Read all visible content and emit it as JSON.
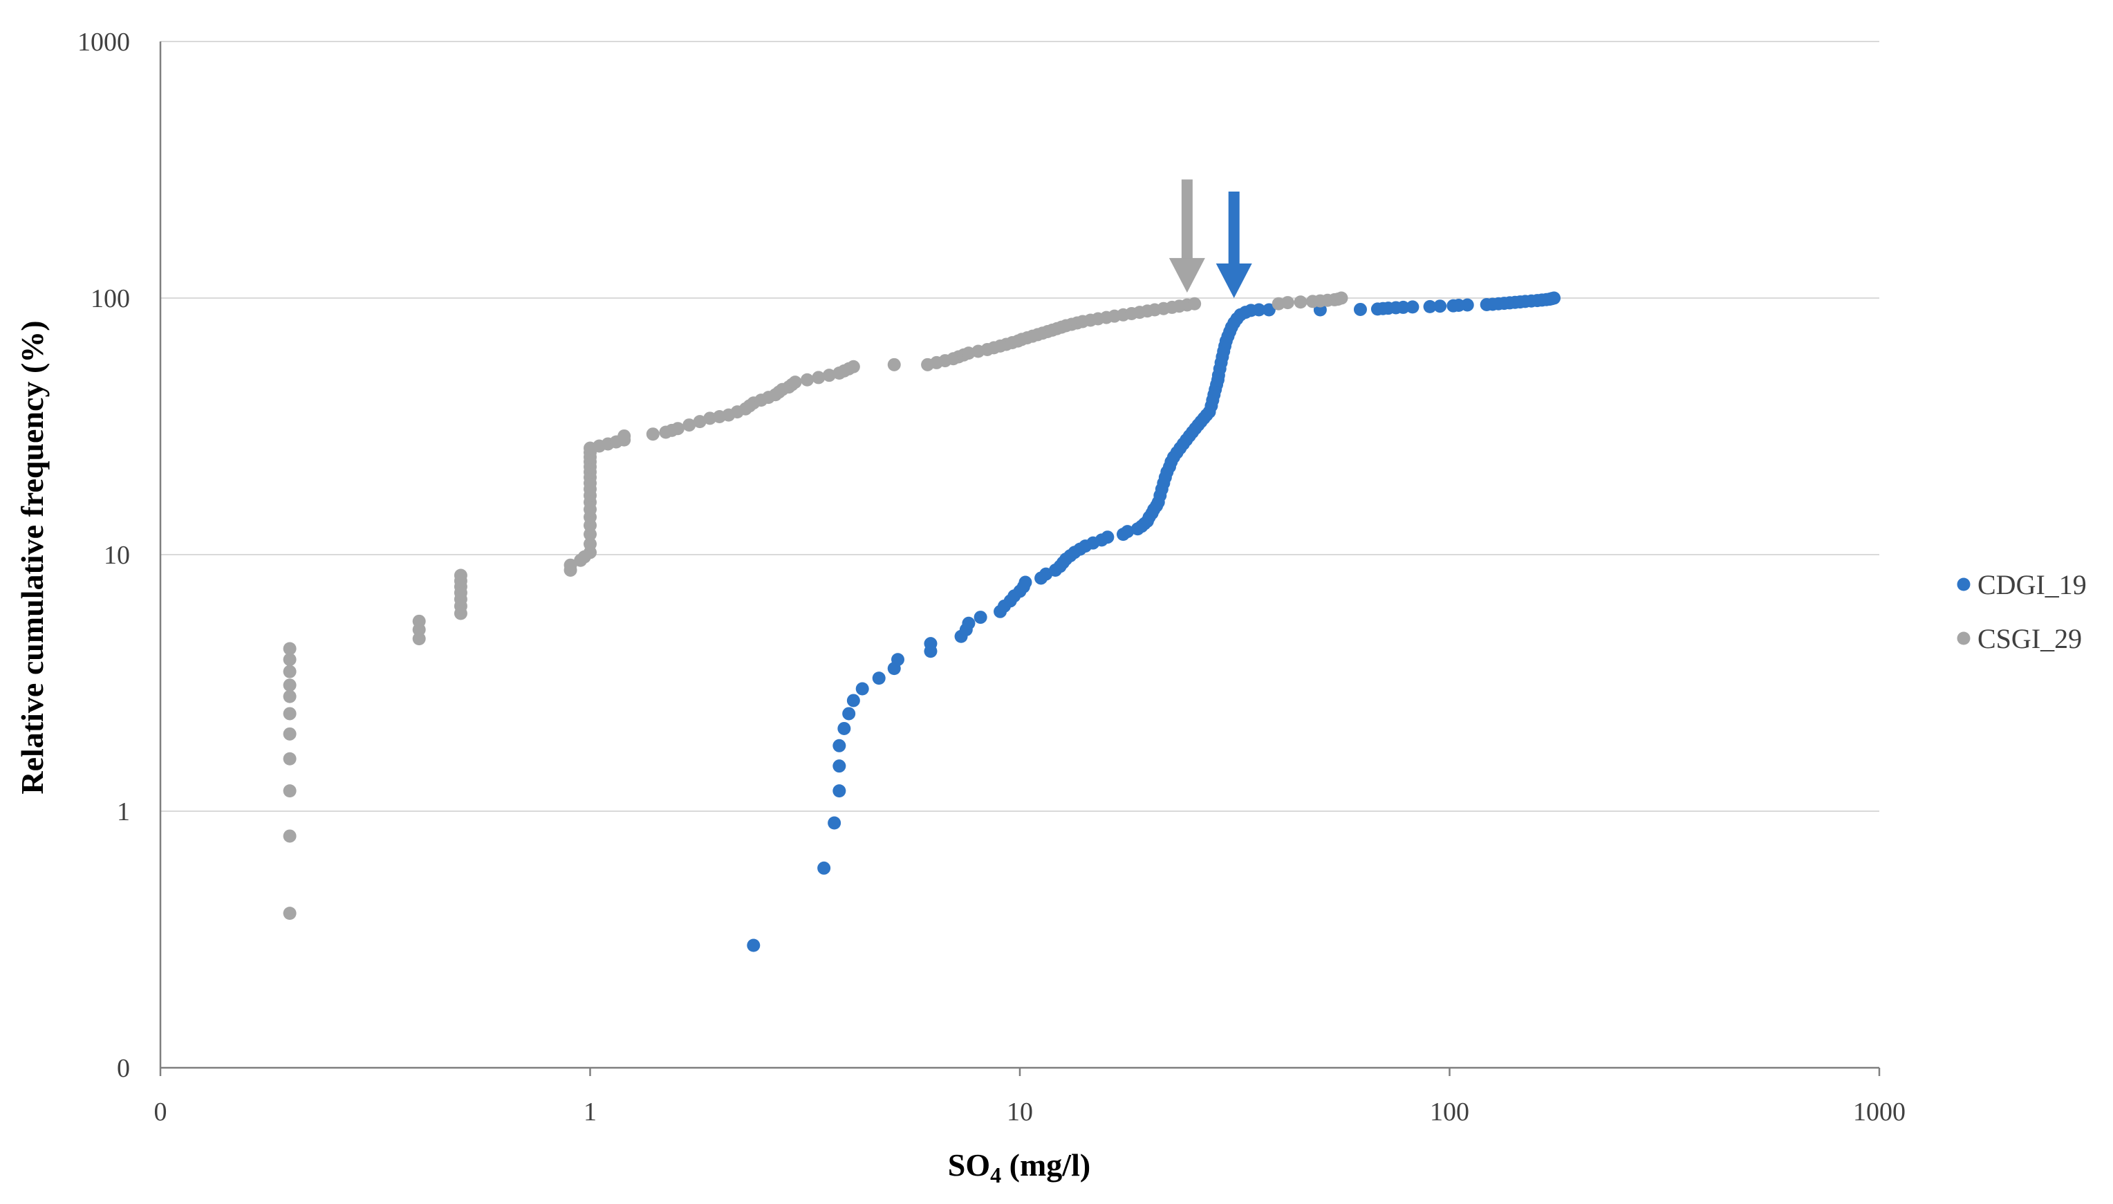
{
  "chart_data": {
    "type": "scatter",
    "title": "",
    "xlabel": "SO",
    "xlabel_subscript": "4",
    "xlabel_suffix": " (mg/l)",
    "ylabel": "Relative cumulative frequency (%)",
    "x_scale": "log",
    "y_scale": "log",
    "x_ticks": [
      0.1,
      1,
      10,
      100,
      1000
    ],
    "x_tick_labels": [
      "0",
      "1",
      "10",
      "100",
      "1000"
    ],
    "y_ticks": [
      0.1,
      1,
      10,
      100,
      1000
    ],
    "y_tick_labels": [
      "0",
      "1",
      "10",
      "100",
      "1000"
    ],
    "xlim": [
      0.1,
      1000
    ],
    "ylim": [
      0.1,
      1000
    ],
    "grid": "horizontal",
    "legend_position": "right",
    "series": [
      {
        "name": "CDGI_19",
        "color": "#2e75c6",
        "points": [
          [
            2.4,
            0.3
          ],
          [
            3.5,
            0.6
          ],
          [
            3.7,
            0.9
          ],
          [
            3.8,
            1.2
          ],
          [
            3.8,
            1.5
          ],
          [
            3.8,
            1.8
          ],
          [
            3.9,
            2.1
          ],
          [
            4.0,
            2.4
          ],
          [
            4.1,
            2.7
          ],
          [
            4.3,
            3.0
          ],
          [
            4.7,
            3.3
          ],
          [
            5.1,
            3.6
          ],
          [
            5.2,
            3.9
          ],
          [
            6.2,
            4.2
          ],
          [
            6.2,
            4.5
          ],
          [
            7.3,
            4.8
          ],
          [
            7.5,
            5.1
          ],
          [
            7.6,
            5.4
          ],
          [
            8.1,
            5.7
          ],
          [
            9.0,
            6.0
          ],
          [
            9.2,
            6.3
          ],
          [
            9.5,
            6.6
          ],
          [
            9.7,
            6.9
          ],
          [
            10.0,
            7.2
          ],
          [
            10.2,
            7.5
          ],
          [
            10.3,
            7.8
          ],
          [
            11.2,
            8.1
          ],
          [
            11.5,
            8.4
          ],
          [
            12.1,
            8.7
          ],
          [
            12.4,
            9.0
          ],
          [
            12.6,
            9.3
          ],
          [
            12.8,
            9.6
          ],
          [
            13.1,
            9.9
          ],
          [
            13.4,
            10.2
          ],
          [
            13.8,
            10.5
          ],
          [
            14.2,
            10.8
          ],
          [
            14.8,
            11.1
          ],
          [
            15.5,
            11.4
          ],
          [
            16.0,
            11.7
          ],
          [
            17.4,
            12.0
          ],
          [
            17.8,
            12.3
          ],
          [
            18.8,
            12.6
          ],
          [
            19.2,
            12.9
          ],
          [
            19.5,
            13.2
          ],
          [
            19.8,
            13.5
          ],
          [
            20.0,
            14.0
          ],
          [
            20.3,
            14.5
          ],
          [
            20.5,
            15.0
          ],
          [
            20.8,
            15.5
          ],
          [
            21.0,
            16.0
          ],
          [
            21.2,
            17.0
          ],
          [
            21.4,
            18.0
          ],
          [
            21.6,
            19.0
          ],
          [
            21.8,
            20.0
          ],
          [
            22.0,
            21.0
          ],
          [
            22.3,
            22.0
          ],
          [
            22.5,
            23.0
          ],
          [
            22.8,
            24.0
          ],
          [
            23.2,
            25.0
          ],
          [
            23.6,
            26.0
          ],
          [
            24.0,
            27.0
          ],
          [
            24.4,
            28.0
          ],
          [
            24.8,
            29.0
          ],
          [
            25.2,
            30.0
          ],
          [
            25.6,
            31.0
          ],
          [
            26.0,
            32.0
          ],
          [
            26.4,
            33.0
          ],
          [
            26.8,
            34.0
          ],
          [
            27.2,
            35.0
          ],
          [
            27.6,
            36.0
          ],
          [
            27.9,
            38.0
          ],
          [
            28.1,
            40.0
          ],
          [
            28.3,
            42.0
          ],
          [
            28.5,
            44.0
          ],
          [
            28.7,
            46.0
          ],
          [
            28.9,
            48.0
          ],
          [
            29.0,
            50.0
          ],
          [
            29.2,
            53.0
          ],
          [
            29.4,
            56.0
          ],
          [
            29.6,
            59.0
          ],
          [
            29.8,
            62.0
          ],
          [
            30.0,
            65.0
          ],
          [
            30.2,
            68.0
          ],
          [
            30.5,
            71.0
          ],
          [
            30.8,
            74.0
          ],
          [
            31.1,
            77.0
          ],
          [
            31.5,
            80.0
          ],
          [
            32.0,
            83.0
          ],
          [
            32.6,
            86.0
          ],
          [
            33.5,
            88.0
          ],
          [
            34.5,
            89.5
          ],
          [
            36.0,
            90.0
          ],
          [
            38.0,
            90.0
          ],
          [
            50.0,
            90.0
          ],
          [
            62.0,
            90.3
          ],
          [
            68.0,
            90.6
          ],
          [
            70.0,
            91.0
          ],
          [
            72.0,
            91.3
          ],
          [
            75.0,
            91.7
          ],
          [
            78.0,
            92.0
          ],
          [
            82.0,
            92.3
          ],
          [
            90.0,
            92.6
          ],
          [
            95.0,
            93.0
          ],
          [
            102.0,
            93.3
          ],
          [
            105.0,
            93.7
          ],
          [
            110.0,
            94.0
          ],
          [
            122.0,
            94.3
          ],
          [
            126.0,
            94.6
          ],
          [
            130.0,
            95.0
          ],
          [
            134.0,
            95.4
          ],
          [
            138.0,
            95.8
          ],
          [
            142.0,
            96.2
          ],
          [
            146.0,
            96.6
          ],
          [
            150.0,
            97.0
          ],
          [
            155.0,
            97.4
          ],
          [
            160.0,
            97.8
          ],
          [
            164.0,
            98.2
          ],
          [
            168.0,
            98.6
          ],
          [
            171.0,
            99.0
          ],
          [
            173.0,
            99.5
          ],
          [
            175.0,
            100.0
          ]
        ]
      },
      {
        "name": "CSGI_29",
        "color": "#a5a5a5",
        "points": [
          [
            0.2,
            0.4
          ],
          [
            0.2,
            0.8
          ],
          [
            0.2,
            1.2
          ],
          [
            0.2,
            1.6
          ],
          [
            0.2,
            2.0
          ],
          [
            0.2,
            2.4
          ],
          [
            0.2,
            2.8
          ],
          [
            0.2,
            3.1
          ],
          [
            0.2,
            3.5
          ],
          [
            0.2,
            3.9
          ],
          [
            0.2,
            4.3
          ],
          [
            0.4,
            4.7
          ],
          [
            0.4,
            5.1
          ],
          [
            0.4,
            5.5
          ],
          [
            0.5,
            5.9
          ],
          [
            0.5,
            6.3
          ],
          [
            0.5,
            6.7
          ],
          [
            0.5,
            7.1
          ],
          [
            0.5,
            7.5
          ],
          [
            0.5,
            7.9
          ],
          [
            0.5,
            8.3
          ],
          [
            0.9,
            8.7
          ],
          [
            0.9,
            9.1
          ],
          [
            0.95,
            9.5
          ],
          [
            0.97,
            9.8
          ],
          [
            1.0,
            10.2
          ],
          [
            1.0,
            11
          ],
          [
            1.0,
            12
          ],
          [
            1.0,
            13
          ],
          [
            1.0,
            14
          ],
          [
            1.0,
            15
          ],
          [
            1.0,
            16
          ],
          [
            1.0,
            17
          ],
          [
            1.0,
            18
          ],
          [
            1.0,
            19
          ],
          [
            1.0,
            20
          ],
          [
            1.0,
            21
          ],
          [
            1.0,
            22
          ],
          [
            1.0,
            23
          ],
          [
            1.0,
            24
          ],
          [
            1.0,
            25
          ],
          [
            1.0,
            26
          ],
          [
            1.05,
            26.5
          ],
          [
            1.1,
            27
          ],
          [
            1.15,
            27.5
          ],
          [
            1.2,
            28
          ],
          [
            1.2,
            29
          ],
          [
            1.4,
            29.5
          ],
          [
            1.5,
            30
          ],
          [
            1.55,
            30.5
          ],
          [
            1.6,
            31
          ],
          [
            1.7,
            32
          ],
          [
            1.8,
            33
          ],
          [
            1.9,
            34
          ],
          [
            2.0,
            34.5
          ],
          [
            2.1,
            35
          ],
          [
            2.2,
            36
          ],
          [
            2.3,
            37
          ],
          [
            2.35,
            38
          ],
          [
            2.4,
            39
          ],
          [
            2.5,
            40
          ],
          [
            2.6,
            41
          ],
          [
            2.7,
            42
          ],
          [
            2.75,
            43
          ],
          [
            2.8,
            44
          ],
          [
            2.9,
            45
          ],
          [
            2.95,
            46
          ],
          [
            3.0,
            47
          ],
          [
            3.2,
            48
          ],
          [
            3.4,
            49
          ],
          [
            3.6,
            50
          ],
          [
            3.8,
            51
          ],
          [
            3.9,
            52
          ],
          [
            4.0,
            53
          ],
          [
            4.1,
            54
          ],
          [
            5.1,
            55
          ],
          [
            6.1,
            55
          ],
          [
            6.4,
            56
          ],
          [
            6.7,
            57
          ],
          [
            7.0,
            58
          ],
          [
            7.2,
            59
          ],
          [
            7.4,
            60
          ],
          [
            7.6,
            61
          ],
          [
            8.0,
            62
          ],
          [
            8.4,
            63
          ],
          [
            8.7,
            64
          ],
          [
            9.0,
            65
          ],
          [
            9.3,
            66
          ],
          [
            9.6,
            67
          ],
          [
            9.9,
            68
          ],
          [
            10.1,
            69
          ],
          [
            10.4,
            70
          ],
          [
            10.7,
            71
          ],
          [
            11.0,
            72
          ],
          [
            11.3,
            73
          ],
          [
            11.6,
            74
          ],
          [
            11.9,
            75
          ],
          [
            12.2,
            76
          ],
          [
            12.5,
            77
          ],
          [
            12.8,
            78
          ],
          [
            13.2,
            79
          ],
          [
            13.6,
            80
          ],
          [
            14.0,
            81
          ],
          [
            14.6,
            82
          ],
          [
            15.2,
            83
          ],
          [
            15.9,
            84
          ],
          [
            16.6,
            85
          ],
          [
            17.4,
            86
          ],
          [
            18.2,
            87
          ],
          [
            19.0,
            88
          ],
          [
            19.8,
            89
          ],
          [
            20.6,
            90
          ],
          [
            21.6,
            91
          ],
          [
            22.6,
            92
          ],
          [
            23.5,
            93
          ],
          [
            24.5,
            94
          ],
          [
            25.5,
            95
          ],
          [
            40.0,
            95
          ],
          [
            42.0,
            96
          ],
          [
            45.0,
            96.5
          ],
          [
            48.0,
            97
          ],
          [
            50.0,
            97.5
          ],
          [
            52.0,
            98
          ],
          [
            54.0,
            98.5
          ],
          [
            55.0,
            99
          ],
          [
            56.0,
            100
          ]
        ]
      }
    ],
    "annotations": [
      {
        "type": "arrow",
        "color": "#a5a5a5",
        "x": 24.5,
        "y_from": 290,
        "y_to": 105
      },
      {
        "type": "arrow",
        "color": "#2e75c6",
        "x": 31.5,
        "y_from": 260,
        "y_to": 100
      }
    ]
  }
}
